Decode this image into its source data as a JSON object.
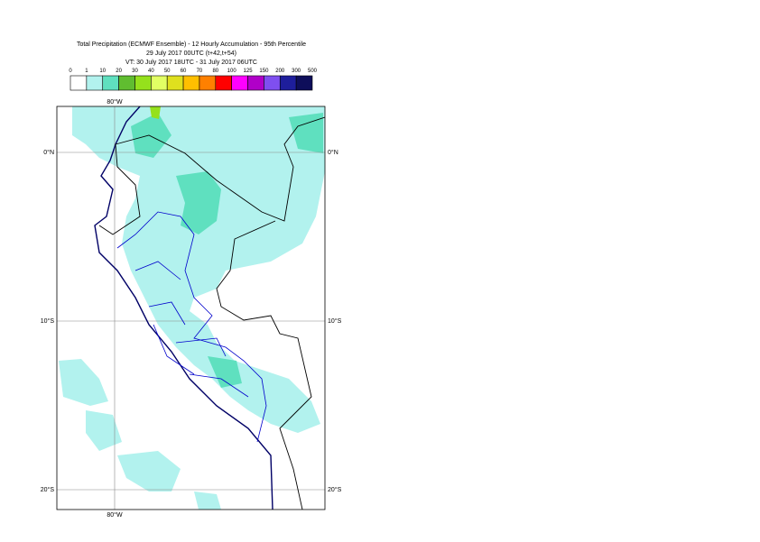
{
  "header": {
    "title_lines": [
      "Total Precipitation (ECMWF Ensemble) - 12 Hourly Accumulation - 95th Percentile",
      "29 July 2017 00UTC (t+42,t+54)",
      "VT: 30 July 2017 18UTC - 31 July 2017 06UTC"
    ]
  },
  "legend": {
    "labels": [
      "0",
      "1",
      "10",
      "20",
      "30",
      "40",
      "50",
      "60",
      "70",
      "80",
      "100",
      "125",
      "150",
      "200",
      "300",
      "500"
    ],
    "colors": [
      "#ffffff",
      "#b2f2ee",
      "#5fe0bf",
      "#60bd30",
      "#95e11c",
      "#e2ff64",
      "#dfe01e",
      "#ffbf00",
      "#ff8000",
      "#ff0000",
      "#ff00ff",
      "#b000c8",
      "#7f4ff0",
      "#1e1e9c",
      "#0e0e5a"
    ]
  },
  "map": {
    "lat_labels": [
      "0°N",
      "10°S",
      "20°S"
    ],
    "lon_labels": [
      "80°W"
    ]
  }
}
